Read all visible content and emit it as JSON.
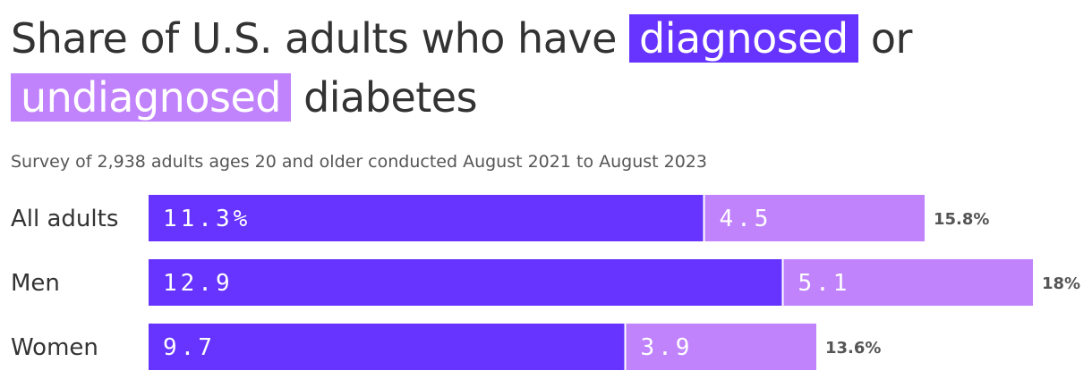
{
  "title": {
    "prefix": "Share of U.S. adults who have",
    "highlight_1": "diagnosed",
    "connector": "or",
    "highlight_2": "undiagnosed",
    "suffix": "diabetes"
  },
  "subtitle": "Survey of 2,938 adults ages 20 and older conducted August 2021 to August 2023",
  "colors": {
    "diagnosed": "#6633FF",
    "undiagnosed": "#C183FC",
    "text": "#333333",
    "muted": "#555555"
  },
  "chart_data": {
    "type": "bar",
    "orientation": "horizontal",
    "stacked": true,
    "categories": [
      "All adults",
      "Men",
      "Women"
    ],
    "series": [
      {
        "name": "diagnosed",
        "values": [
          11.3,
          12.9,
          9.7
        ],
        "labels": [
          "11.3%",
          "12.9",
          "9.7"
        ]
      },
      {
        "name": "undiagnosed",
        "values": [
          4.5,
          5.1,
          3.9
        ],
        "labels": [
          "4.5",
          "5.1",
          "3.9"
        ]
      }
    ],
    "totals": [
      "15.8%",
      "18%",
      "13.6%"
    ],
    "xlim": [
      0,
      18
    ],
    "grid": false,
    "legend": "none"
  }
}
